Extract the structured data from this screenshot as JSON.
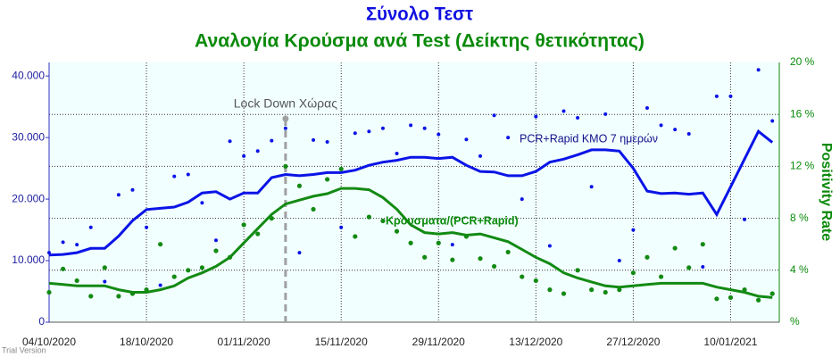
{
  "chart_data": {
    "type": "line",
    "title": "Σύνολο Τεστ",
    "subtitle": "Αναλογία Κρούσμα ανά Test (Δείκτης θετικότητας)",
    "y2label": "Positivity Rate",
    "watermark": "Trial Version",
    "annotation": {
      "text": "Lock Down Χώρας",
      "x": "2020-11-07"
    },
    "x": [
      "2020-10-04",
      "2020-10-06",
      "2020-10-08",
      "2020-10-10",
      "2020-10-12",
      "2020-10-14",
      "2020-10-16",
      "2020-10-18",
      "2020-10-20",
      "2020-10-22",
      "2020-10-24",
      "2020-10-26",
      "2020-10-28",
      "2020-10-30",
      "2020-11-01",
      "2020-11-03",
      "2020-11-05",
      "2020-11-07",
      "2020-11-09",
      "2020-11-11",
      "2020-11-13",
      "2020-11-15",
      "2020-11-17",
      "2020-11-19",
      "2020-11-21",
      "2020-11-23",
      "2020-11-25",
      "2020-11-27",
      "2020-11-29",
      "2020-12-01",
      "2020-12-03",
      "2020-12-05",
      "2020-12-07",
      "2020-12-09",
      "2020-12-11",
      "2020-12-13",
      "2020-12-15",
      "2020-12-17",
      "2020-12-19",
      "2020-12-21",
      "2020-12-23",
      "2020-12-25",
      "2020-12-27",
      "2020-12-29",
      "2020-12-31",
      "2021-01-02",
      "2021-01-04",
      "2021-01-06",
      "2021-01-08",
      "2021-01-10",
      "2021-01-12",
      "2021-01-14",
      "2021-01-16"
    ],
    "xlim": [
      "2020-10-04",
      "2021-01-17"
    ],
    "xticks": [
      {
        "value": "2020-10-04",
        "label": "04/10/2020"
      },
      {
        "value": "2020-10-18",
        "label": "18/10/2020"
      },
      {
        "value": "2020-11-01",
        "label": "01/11/2020"
      },
      {
        "value": "2020-11-15",
        "label": "15/11/2020"
      },
      {
        "value": "2020-11-29",
        "label": "29/11/2020"
      },
      {
        "value": "2020-12-13",
        "label": "13/12/2020"
      },
      {
        "value": "2020-12-27",
        "label": "27/12/2020"
      },
      {
        "value": "2021-01-10",
        "label": "10/01/2021"
      }
    ],
    "ylim": [
      0,
      42200
    ],
    "yticks": [
      0,
      {
        "value": 10000,
        "label": "10.000"
      },
      {
        "value": 20000,
        "label": "20.000"
      },
      {
        "value": 30000,
        "label": "30.000"
      },
      {
        "value": 40000,
        "label": "40.000"
      }
    ],
    "y2lim": [
      0,
      20
    ],
    "y2ticks": [
      {
        "value": 0,
        "label": "%"
      },
      {
        "value": 4,
        "label": "4 %"
      },
      {
        "value": 8,
        "label": "8 %"
      },
      {
        "value": 12,
        "label": "12 %"
      },
      {
        "value": 16,
        "label": "16 %"
      },
      {
        "value": 20,
        "label": "20 %"
      }
    ],
    "grid": true,
    "series": [
      {
        "name": "PCR+Rapid ΚΜΟ 7 ημερών",
        "color": "#0a14e6",
        "mark": "line",
        "axis": "y",
        "values": [
          10900,
          11000,
          11300,
          12000,
          12000,
          14000,
          16500,
          18300,
          18500,
          18700,
          19500,
          21000,
          21200,
          20000,
          21000,
          21000,
          23500,
          24000,
          23800,
          24000,
          24300,
          24300,
          24700,
          25500,
          26000,
          26300,
          26800,
          26800,
          26600,
          26800,
          25500,
          24500,
          24400,
          23800,
          23800,
          24500,
          26000,
          26500,
          27200,
          28000,
          28000,
          27800,
          25000,
          21300,
          20900,
          21000,
          20800,
          21000,
          17500,
          22000,
          26500,
          31000,
          29200
        ]
      },
      {
        "color": "#0a14e6",
        "mark": "dot",
        "axis": "y",
        "values": [
          11300,
          13000,
          12600,
          15400,
          6600,
          20700,
          21500,
          15400,
          6000,
          23700,
          24000,
          19400,
          13300,
          29400,
          27000,
          27800,
          29500,
          31500,
          11300,
          29600,
          29300,
          15400,
          30700,
          31000,
          31500,
          27400,
          32000,
          31500,
          30500,
          12600,
          29700,
          27000,
          33600,
          30000,
          20000,
          33400,
          12400,
          34300,
          33200,
          22000,
          33800,
          10000,
          15000,
          34800,
          32000,
          31300,
          30600,
          9000,
          36700,
          36700,
          16700,
          41000,
          32700
        ]
      },
      {
        "name": "Κρουσματα/(PCR+Rapid)",
        "color": "#138a13",
        "mark": "line",
        "axis": "y2",
        "values": [
          3.0,
          2.9,
          2.8,
          2.8,
          2.8,
          2.5,
          2.3,
          2.3,
          2.5,
          2.8,
          3.4,
          3.8,
          4.3,
          5.0,
          6.1,
          7.2,
          8.3,
          9.1,
          9.4,
          9.7,
          9.9,
          10.3,
          10.3,
          10.2,
          9.6,
          8.7,
          7.5,
          6.9,
          6.8,
          6.9,
          6.7,
          6.8,
          6.5,
          6.2,
          5.6,
          5.0,
          4.5,
          3.8,
          3.4,
          3.1,
          2.8,
          2.7,
          2.8,
          2.9,
          3.0,
          3.0,
          3.0,
          3.0,
          2.7,
          2.5,
          2.3,
          2.0,
          1.9
        ]
      },
      {
        "color": "#138a13",
        "mark": "dot",
        "axis": "y2",
        "values": [
          2.3,
          4.1,
          3.2,
          2.0,
          4.2,
          2.0,
          2.2,
          2.5,
          6.0,
          3.5,
          4.0,
          4.2,
          5.5,
          5.0,
          7.5,
          6.8,
          8.0,
          12.0,
          10.5,
          8.7,
          11.0,
          11.8,
          6.6,
          8.1,
          7.8,
          7.0,
          6.1,
          5.0,
          6.1,
          4.8,
          6.6,
          4.9,
          4.3,
          5.4,
          3.5,
          3.2,
          2.5,
          2.2,
          4.0,
          2.5,
          2.3,
          2.5,
          3.8,
          5.0,
          3.5,
          5.7,
          4.2,
          6.0,
          1.8,
          1.9,
          2.5,
          1.7,
          2.2
        ]
      }
    ]
  }
}
